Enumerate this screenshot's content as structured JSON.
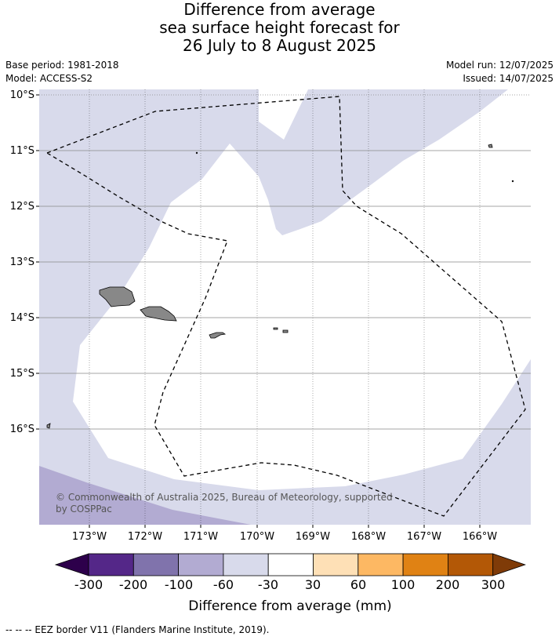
{
  "title": {
    "line1": "Difference from average",
    "line2": "sea surface height forecast for",
    "line3": "26 July to 8 August 2025"
  },
  "meta": {
    "base_period": "Base period: 1981-2018",
    "model": "Model: ACCESS-S2",
    "model_run": "Model run: 12/07/2025",
    "issued": "Issued: 14/07/2025"
  },
  "map": {
    "lat_labels": [
      "10°S",
      "11°S",
      "12°S",
      "13°S",
      "14°S",
      "15°S",
      "16°S"
    ],
    "lon_labels": [
      "173°W",
      "172°W",
      "171°W",
      "170°W",
      "169°W",
      "168°W",
      "167°W",
      "166°W"
    ],
    "copyright_line1": "© Commonwealth of Australia 2025, Bureau of Meteorology, supported",
    "copyright_line2": "by COSPPac"
  },
  "legend": {
    "ticks": [
      "-300",
      "-200",
      "-100",
      "-60",
      "-30",
      "30",
      "60",
      "100",
      "200",
      "300"
    ],
    "colors": [
      "#2d004b",
      "#542788",
      "#8073ac",
      "#b2abd2",
      "#d8daeb",
      "#ffffff",
      "#fee0b6",
      "#fdb863",
      "#e08214",
      "#b35806",
      "#7f3b08"
    ],
    "label": "Difference from average (mm)"
  },
  "footnote": "--  --  -- EEZ border V11 (Flanders Marine Institute, 2019)."
}
